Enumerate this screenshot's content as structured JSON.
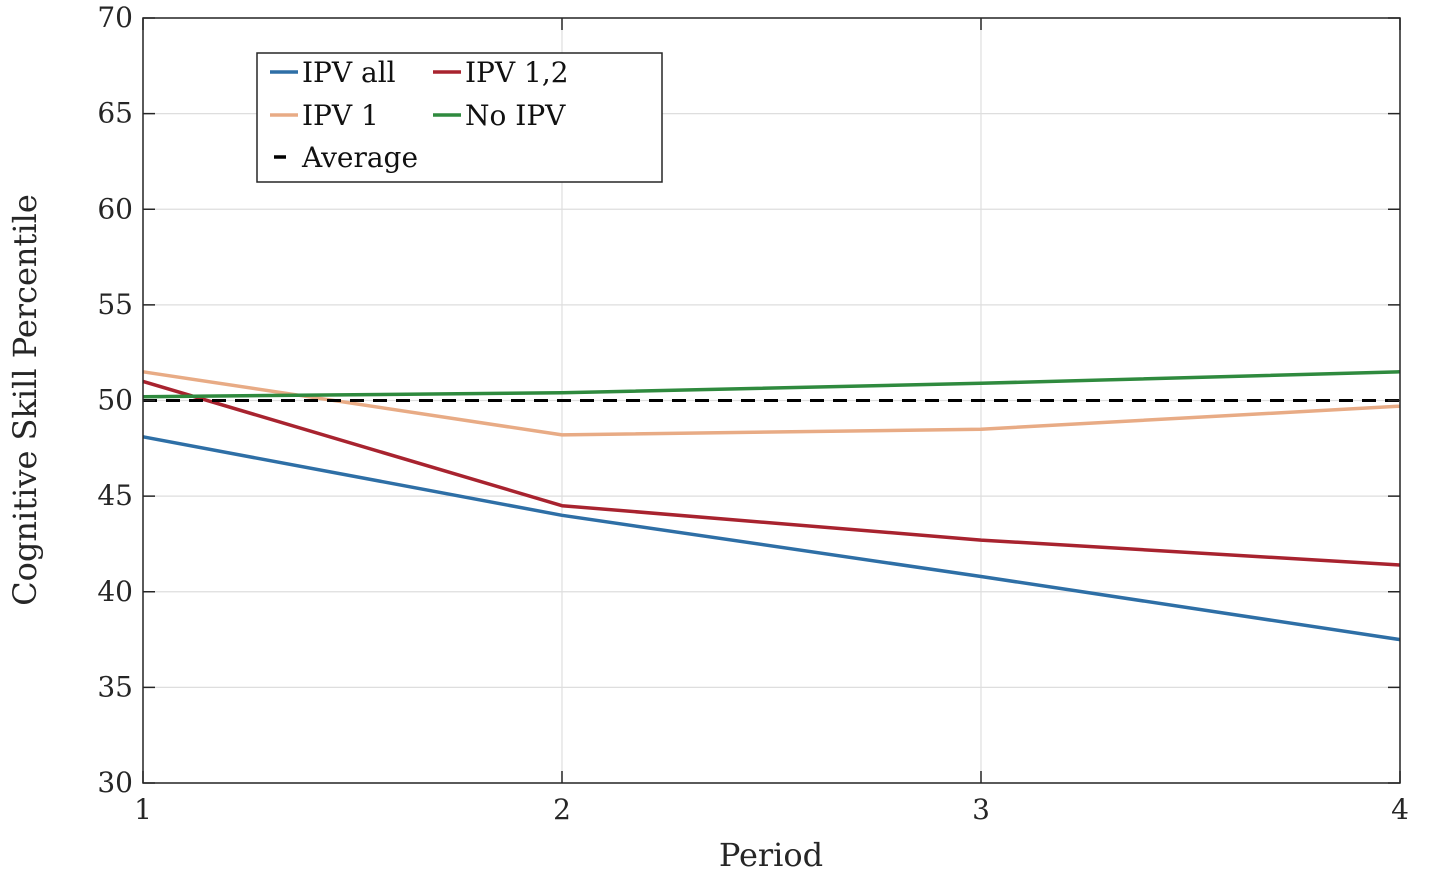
{
  "chart_data": {
    "type": "line",
    "title": "",
    "xlabel": "Period",
    "ylabel": "Cognitive Skill Percentile",
    "xlim": [
      1,
      4
    ],
    "ylim": [
      30,
      70
    ],
    "x_ticks": [
      "1",
      "2",
      "3",
      "4"
    ],
    "y_ticks": [
      "30",
      "35",
      "40",
      "45",
      "50",
      "55",
      "60",
      "65",
      "70"
    ],
    "grid": true,
    "legend_position": "top-left",
    "x": [
      1,
      2,
      3,
      4
    ],
    "series": [
      {
        "name": "IPV all",
        "color": "#2e6fa6",
        "style": "solid",
        "values": [
          48.1,
          44.0,
          40.8,
          37.5
        ]
      },
      {
        "name": "IPV 1,2",
        "color": "#a8232f",
        "style": "solid",
        "values": [
          51.0,
          44.5,
          42.7,
          41.4
        ]
      },
      {
        "name": "IPV 1",
        "color": "#e8ab85",
        "style": "solid",
        "values": [
          51.5,
          48.2,
          48.5,
          49.7
        ]
      },
      {
        "name": "No IPV",
        "color": "#2f8a3e",
        "style": "solid",
        "values": [
          50.2,
          50.4,
          50.9,
          51.5
        ]
      },
      {
        "name": "Average",
        "color": "#000000",
        "style": "dashed",
        "values": [
          50,
          50,
          50,
          50
        ]
      }
    ]
  }
}
